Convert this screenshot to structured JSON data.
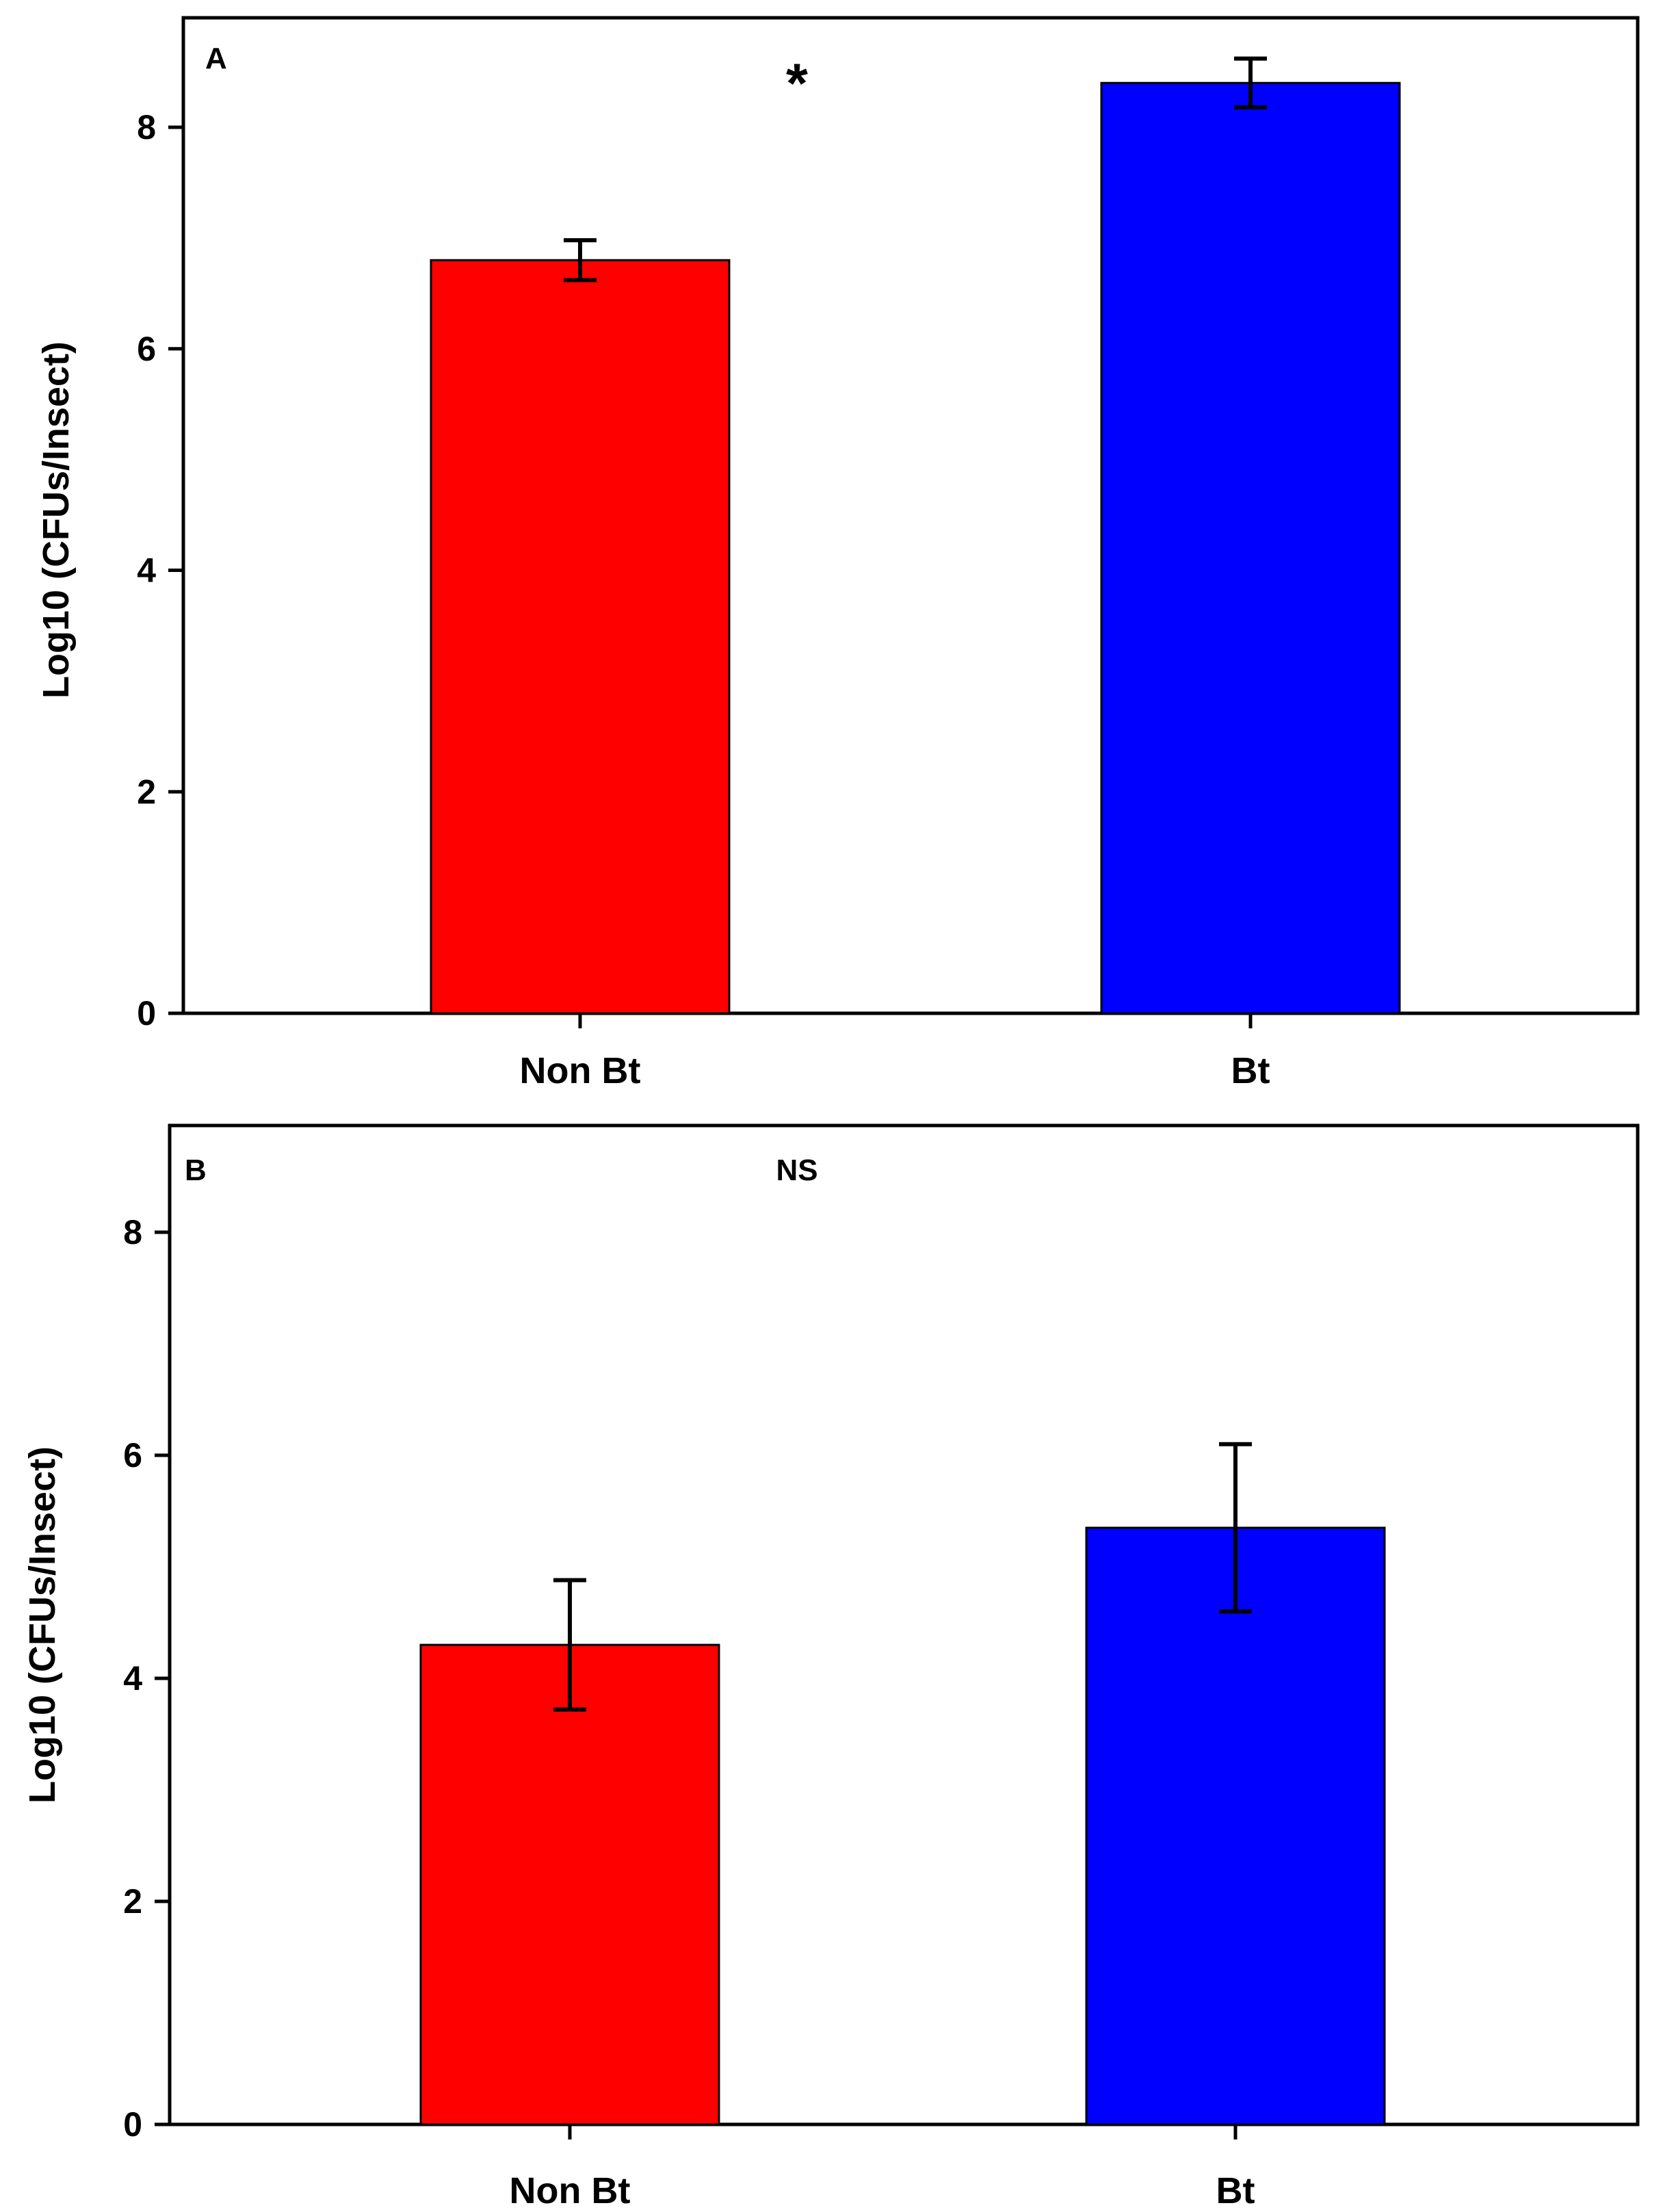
{
  "chart_data": [
    {
      "panel_label": "A",
      "type": "bar",
      "categories": [
        "Non Bt",
        "Bt"
      ],
      "values": [
        6.8,
        8.4
      ],
      "errors": [
        0.18,
        0.22
      ],
      "colors": [
        "#ff0000",
        "#0000ff"
      ],
      "ylabel": "Log10 (CFUs/Insect)",
      "xlabel": "",
      "ylim": [
        0,
        9
      ],
      "yticks": [
        0,
        2,
        4,
        6,
        8
      ],
      "significance": "*"
    },
    {
      "panel_label": "B",
      "type": "bar",
      "categories": [
        "Non Bt",
        "Bt"
      ],
      "values": [
        4.3,
        5.35
      ],
      "errors": [
        0.58,
        0.75
      ],
      "colors": [
        "#ff0000",
        "#0000ff"
      ],
      "ylabel": "Log10 (CFUs/Insect)",
      "xlabel": "",
      "ylim": [
        0,
        9
      ],
      "yticks": [
        0,
        2,
        4,
        6,
        8
      ],
      "significance": "NS"
    }
  ]
}
